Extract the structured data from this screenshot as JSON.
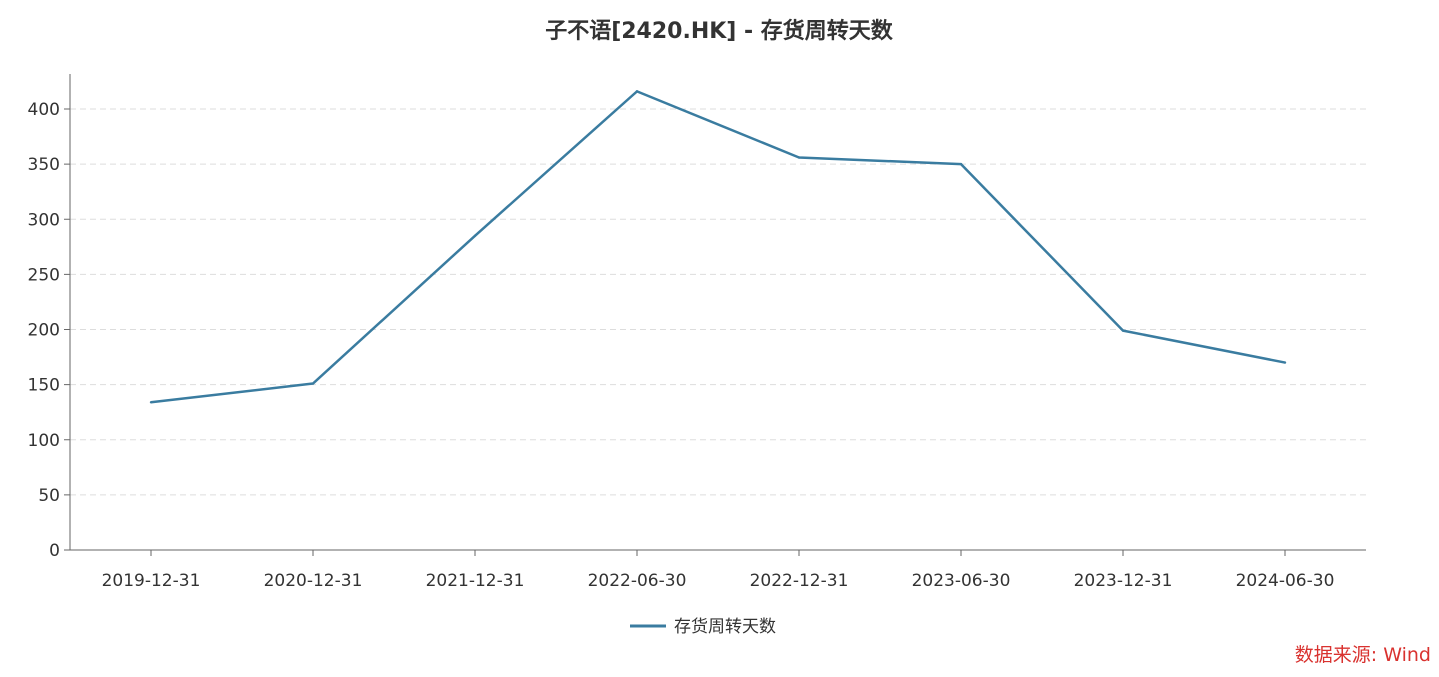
{
  "source_note": "数据来源: Wind",
  "colors": {
    "series": "#3a7ca0",
    "axis": "#666666",
    "grid": "#dddddd",
    "source": "#d9322f"
  },
  "chart_data": {
    "type": "line",
    "title": "子不语[2420.HK] - 存货周转天数",
    "xlabel": "",
    "ylabel": "",
    "categories": [
      "2019-12-31",
      "2020-12-31",
      "2021-12-31",
      "2022-06-30",
      "2022-12-31",
      "2023-06-30",
      "2023-12-31",
      "2024-06-30"
    ],
    "series": [
      {
        "name": "存货周转天数",
        "values": [
          134,
          151,
          285,
          416,
          356,
          350,
          199,
          170
        ]
      }
    ],
    "ylim": [
      0,
      430
    ],
    "yticks": [
      0,
      50,
      100,
      150,
      200,
      250,
      300,
      350,
      400
    ],
    "grid": "horizontal-dashed",
    "legend": "bottom-center"
  }
}
